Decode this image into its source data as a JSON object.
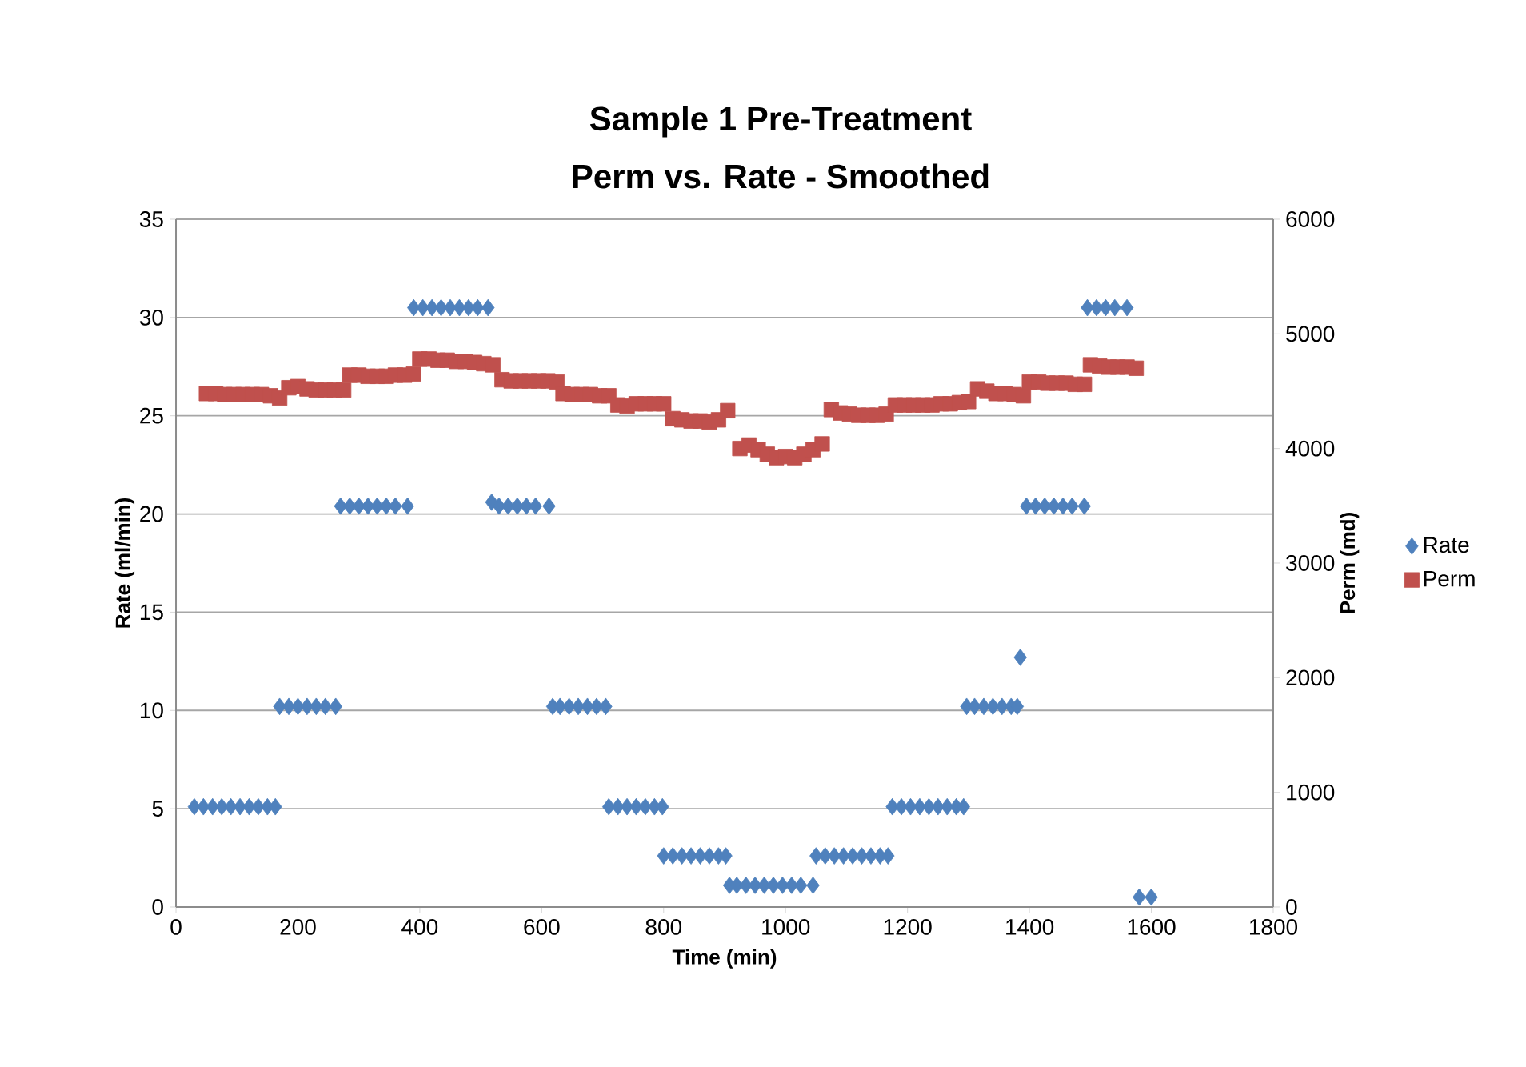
{
  "chart_data": {
    "type": "scatter",
    "title": "Sample 1 Pre-Treatment",
    "subtitle": "Perm vs. Rate - Smoothed",
    "xlabel": "Time (min)",
    "ylabel": "Rate (ml/min)",
    "y2label": "Perm (md)",
    "xlim": [
      0,
      1800
    ],
    "xticks": [
      0,
      200,
      400,
      600,
      800,
      1000,
      1200,
      1400,
      1600,
      1800
    ],
    "ylim": [
      0,
      35
    ],
    "yticks": [
      0,
      5,
      10,
      15,
      20,
      25,
      30,
      35
    ],
    "y2lim": [
      0,
      6000
    ],
    "y2ticks": [
      0,
      1000,
      2000,
      3000,
      4000,
      5000,
      6000
    ],
    "grid": "y",
    "legend": "right",
    "series": [
      {
        "name": "Rate",
        "color": "#4f81bd",
        "marker": "diamond",
        "axis": "y",
        "x": [
          30,
          45,
          60,
          75,
          90,
          105,
          120,
          135,
          150,
          163,
          170,
          185,
          200,
          215,
          230,
          245,
          262,
          270,
          285,
          300,
          315,
          330,
          345,
          360,
          380,
          390,
          405,
          420,
          435,
          450,
          465,
          480,
          495,
          512,
          518,
          530,
          545,
          560,
          575,
          590,
          612,
          618,
          630,
          645,
          660,
          675,
          690,
          705,
          710,
          725,
          740,
          755,
          770,
          785,
          798,
          800,
          815,
          830,
          845,
          860,
          875,
          890,
          902,
          908,
          920,
          935,
          950,
          965,
          980,
          995,
          1010,
          1025,
          1045,
          1050,
          1065,
          1080,
          1095,
          1110,
          1125,
          1140,
          1155,
          1168,
          1175,
          1190,
          1205,
          1220,
          1235,
          1250,
          1265,
          1280,
          1292,
          1297,
          1310,
          1325,
          1340,
          1355,
          1370,
          1380,
          1385,
          1395,
          1410,
          1425,
          1440,
          1455,
          1470,
          1490,
          1495,
          1510,
          1525,
          1540,
          1560,
          1580,
          1600
        ],
        "values": [
          5.1,
          5.1,
          5.1,
          5.1,
          5.1,
          5.1,
          5.1,
          5.1,
          5.1,
          5.1,
          10.2,
          10.2,
          10.2,
          10.2,
          10.2,
          10.2,
          10.2,
          20.4,
          20.4,
          20.4,
          20.4,
          20.4,
          20.4,
          20.4,
          20.4,
          30.5,
          30.5,
          30.5,
          30.5,
          30.5,
          30.5,
          30.5,
          30.5,
          30.5,
          20.6,
          20.4,
          20.4,
          20.4,
          20.4,
          20.4,
          20.4,
          10.2,
          10.2,
          10.2,
          10.2,
          10.2,
          10.2,
          10.2,
          5.1,
          5.1,
          5.1,
          5.1,
          5.1,
          5.1,
          5.1,
          2.6,
          2.6,
          2.6,
          2.6,
          2.6,
          2.6,
          2.6,
          2.6,
          1.1,
          1.1,
          1.1,
          1.1,
          1.1,
          1.1,
          1.1,
          1.1,
          1.1,
          1.1,
          2.6,
          2.6,
          2.6,
          2.6,
          2.6,
          2.6,
          2.6,
          2.6,
          2.6,
          5.1,
          5.1,
          5.1,
          5.1,
          5.1,
          5.1,
          5.1,
          5.1,
          5.1,
          10.2,
          10.2,
          10.2,
          10.2,
          10.2,
          10.2,
          10.2,
          12.7,
          20.4,
          20.4,
          20.4,
          20.4,
          20.4,
          20.4,
          20.4,
          30.5,
          30.5,
          30.5,
          30.5,
          30.5,
          0.5,
          0.5
        ]
      },
      {
        "name": "Perm",
        "color": "#c0504d",
        "marker": "square",
        "axis": "y2",
        "x": [
          50,
          65,
          80,
          95,
          110,
          125,
          140,
          155,
          170,
          185,
          200,
          215,
          230,
          245,
          260,
          275,
          285,
          300,
          315,
          330,
          345,
          360,
          375,
          390,
          400,
          415,
          430,
          445,
          460,
          475,
          490,
          505,
          520,
          535,
          550,
          565,
          580,
          595,
          610,
          625,
          635,
          650,
          665,
          680,
          695,
          710,
          725,
          740,
          755,
          770,
          785,
          800,
          815,
          830,
          845,
          860,
          875,
          890,
          905,
          925,
          940,
          955,
          970,
          985,
          1000,
          1015,
          1030,
          1045,
          1060,
          1075,
          1090,
          1105,
          1120,
          1135,
          1150,
          1165,
          1180,
          1195,
          1210,
          1225,
          1240,
          1255,
          1270,
          1285,
          1300,
          1315,
          1330,
          1345,
          1360,
          1375,
          1390,
          1400,
          1415,
          1430,
          1445,
          1460,
          1475,
          1490,
          1500,
          1515,
          1530,
          1545,
          1560,
          1575
        ],
        "values": [
          4480,
          4480,
          4470,
          4470,
          4470,
          4470,
          4470,
          4460,
          4440,
          4530,
          4540,
          4520,
          4510,
          4510,
          4510,
          4510,
          4640,
          4640,
          4630,
          4630,
          4630,
          4640,
          4640,
          4650,
          4780,
          4780,
          4770,
          4770,
          4760,
          4760,
          4750,
          4740,
          4730,
          4600,
          4590,
          4590,
          4590,
          4590,
          4590,
          4580,
          4480,
          4470,
          4470,
          4470,
          4460,
          4460,
          4380,
          4370,
          4390,
          4390,
          4390,
          4390,
          4260,
          4250,
          4240,
          4240,
          4230,
          4250,
          4330,
          4000,
          4030,
          3990,
          3950,
          3920,
          3930,
          3920,
          3950,
          3990,
          4040,
          4340,
          4310,
          4300,
          4290,
          4290,
          4290,
          4300,
          4380,
          4380,
          4380,
          4380,
          4380,
          4390,
          4390,
          4400,
          4410,
          4520,
          4500,
          4480,
          4480,
          4470,
          4460,
          4580,
          4580,
          4570,
          4570,
          4570,
          4560,
          4560,
          4730,
          4720,
          4710,
          4710,
          4710,
          4700
        ]
      }
    ]
  }
}
